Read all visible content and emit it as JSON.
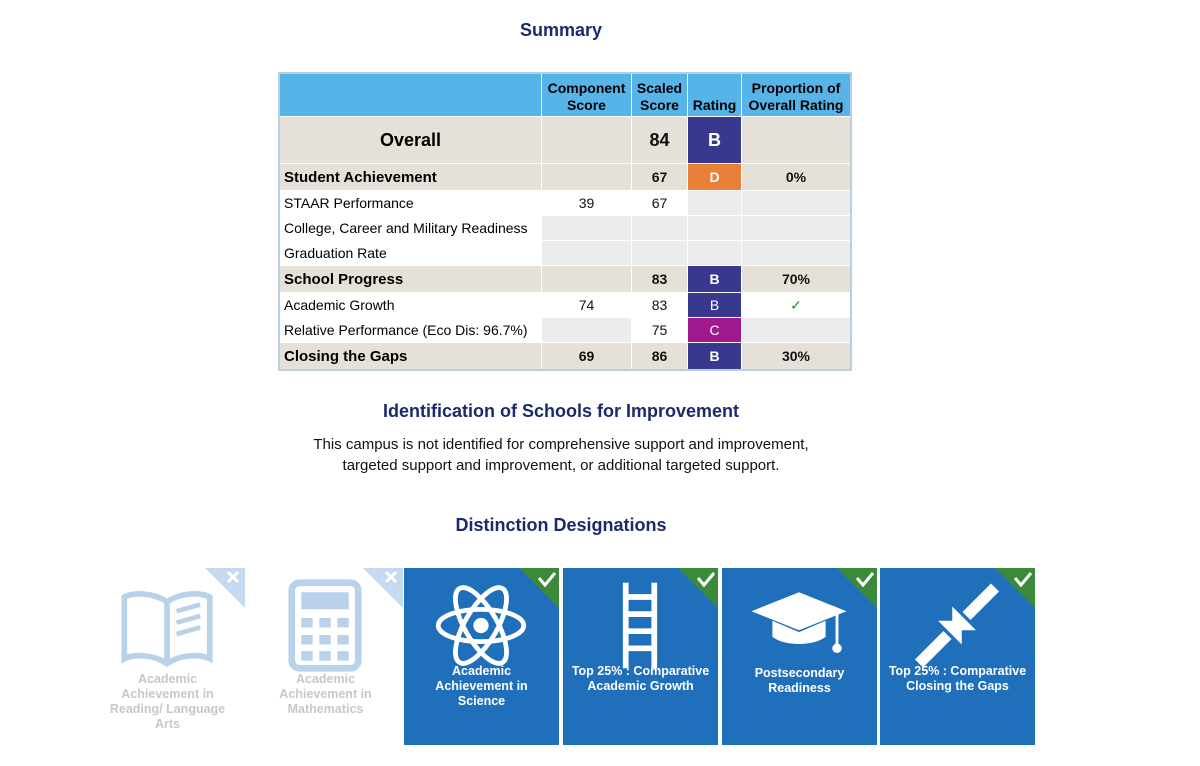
{
  "summary": {
    "title": "Summary",
    "headers": [
      "Component Score",
      "Scaled Score",
      "Rating",
      "Proportion of Overall Rating"
    ],
    "rating_colors": {
      "B": "#38388f",
      "C": "#a0198f",
      "D": "#e8803a"
    },
    "rows": [
      {
        "kind": "overall",
        "label": "Overall",
        "scaled": 84,
        "rating": "B"
      },
      {
        "kind": "heading",
        "label": "Student Achievement",
        "scaled": 67,
        "rating": "D",
        "proportion": "0%"
      },
      {
        "kind": "sub",
        "label": "STAAR Performance",
        "component": 39,
        "scaled": 67
      },
      {
        "kind": "sub",
        "label": "College, Career and Military Readiness"
      },
      {
        "kind": "sub",
        "label": "Graduation Rate"
      },
      {
        "kind": "heading",
        "label": "School Progress",
        "scaled": 83,
        "rating": "B",
        "proportion": "70%"
      },
      {
        "kind": "sub",
        "label": "Academic Growth",
        "component": 74,
        "scaled": 83,
        "rating": "B",
        "proportion": "✓"
      },
      {
        "kind": "sub",
        "label": "Relative Performance (Eco Dis: 96.7%)",
        "scaled": 75,
        "rating": "C"
      },
      {
        "kind": "heading",
        "label": "Closing the Gaps",
        "component": 69,
        "scaled": 86,
        "rating": "B",
        "proportion": "30%"
      }
    ]
  },
  "identification": {
    "title": "Identification of Schools for Improvement",
    "lines": [
      "This campus is not identified for comprehensive support and improvement,",
      "targeted support and improvement, or additional targeted support."
    ]
  },
  "distinctions": {
    "title": "Distinction Designations",
    "items": [
      {
        "label": "Academic Achievement in Reading/ Language Arts",
        "earned": false
      },
      {
        "label": "Academic Achievement in Mathematics",
        "earned": false
      },
      {
        "label": "Academic Achievement in Science",
        "earned": true
      },
      {
        "label": "Top 25% : Comparative Academic Growth",
        "earned": true
      },
      {
        "label": "Postsecondary Readiness",
        "earned": true
      },
      {
        "label": "Top 25% : Comparative Closing the Gaps",
        "earned": true
      }
    ]
  }
}
